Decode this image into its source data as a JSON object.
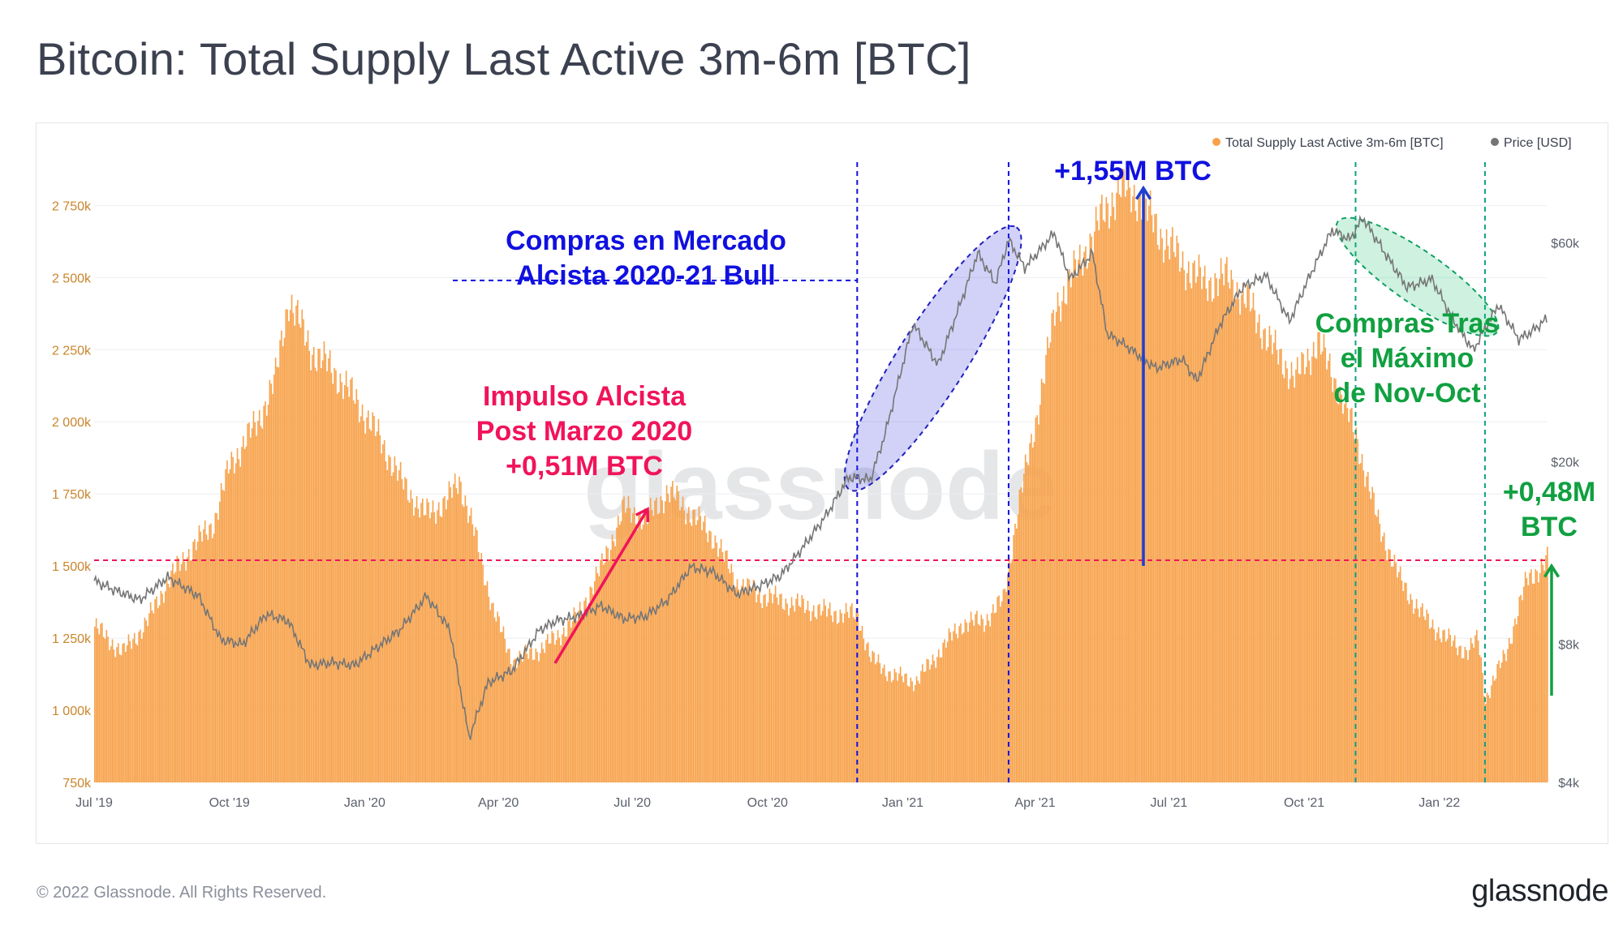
{
  "title": "Bitcoin: Total Supply Last Active 3m-6m [BTC]",
  "footer": "© 2022 Glassnode. All Rights Reserved.",
  "brand": "glassnode",
  "watermark": "glassnode",
  "colors": {
    "bars": "#f7a24b",
    "price": "#757575",
    "blue": "#1010e0",
    "pink": "#f0145a",
    "green": "#10a040",
    "grid": "#eceef2",
    "left_tick": "#c9852c",
    "tick": "#5a5f6b"
  },
  "chart_data": {
    "type": "bar",
    "x_start": "2019-07-01",
    "x_end": "2022-03-15",
    "xticks": [
      {
        "label": "Jul '19",
        "date": "2019-07-01"
      },
      {
        "label": "Oct '19",
        "date": "2019-10-01"
      },
      {
        "label": "Jan '20",
        "date": "2020-01-01"
      },
      {
        "label": "Apr '20",
        "date": "2020-04-01"
      },
      {
        "label": "Jul '20",
        "date": "2020-07-01"
      },
      {
        "label": "Oct '20",
        "date": "2020-10-01"
      },
      {
        "label": "Jan '21",
        "date": "2021-01-01"
      },
      {
        "label": "Apr '21",
        "date": "2021-04-01"
      },
      {
        "label": "Jul '21",
        "date": "2021-07-01"
      },
      {
        "label": "Oct '21",
        "date": "2021-10-01"
      },
      {
        "label": "Jan '22",
        "date": "2022-01-01"
      }
    ],
    "y_left": {
      "min": 750000,
      "max": 2900000,
      "ticks": [
        {
          "label": "750k",
          "value": 750000
        },
        {
          "label": "1 000k",
          "value": 1000000
        },
        {
          "label": "1 250k",
          "value": 1250000
        },
        {
          "label": "1 500k",
          "value": 1500000
        },
        {
          "label": "1 750k",
          "value": 1750000
        },
        {
          "label": "2 000k",
          "value": 2000000
        },
        {
          "label": "2 250k",
          "value": 2250000
        },
        {
          "label": "2 500k",
          "value": 2500000
        },
        {
          "label": "2 750k",
          "value": 2750000
        }
      ]
    },
    "y_right": {
      "scale": "log",
      "min": 4000,
      "max": 90000,
      "ticks": [
        {
          "label": "$4k",
          "value": 4000
        },
        {
          "label": "$8k",
          "value": 8000
        },
        {
          "label": "$20k",
          "value": 20000
        },
        {
          "label": "$60k",
          "value": 60000
        }
      ]
    },
    "legend": {
      "placement": "top-right",
      "items": [
        {
          "label": "Total Supply Last Active 3m-6m [BTC]",
          "color": "#f7a24b"
        },
        {
          "label": "Price [USD]",
          "color": "#757575"
        }
      ]
    },
    "series": [
      {
        "name": "Total Supply Last Active 3m-6m [BTC]",
        "axis": "left",
        "points": [
          [
            "2019-07-01",
            1290000
          ],
          [
            "2019-07-20",
            1200000
          ],
          [
            "2019-08-05",
            1300000
          ],
          [
            "2019-08-20",
            1450000
          ],
          [
            "2019-09-05",
            1560000
          ],
          [
            "2019-09-20",
            1650000
          ],
          [
            "2019-10-01",
            1850000
          ],
          [
            "2019-10-20",
            2000000
          ],
          [
            "2019-11-01",
            2150000
          ],
          [
            "2019-11-10",
            2430000
          ],
          [
            "2019-11-25",
            2250000
          ],
          [
            "2019-12-10",
            2180000
          ],
          [
            "2019-12-25",
            2080000
          ],
          [
            "2020-01-10",
            1950000
          ],
          [
            "2020-01-25",
            1800000
          ],
          [
            "2020-02-10",
            1680000
          ],
          [
            "2020-02-25",
            1720000
          ],
          [
            "2020-03-05",
            1800000
          ],
          [
            "2020-03-15",
            1620000
          ],
          [
            "2020-03-28",
            1350000
          ],
          [
            "2020-04-10",
            1170000
          ],
          [
            "2020-04-25",
            1200000
          ],
          [
            "2020-05-10",
            1250000
          ],
          [
            "2020-05-25",
            1330000
          ],
          [
            "2020-06-10",
            1500000
          ],
          [
            "2020-06-25",
            1700000
          ],
          [
            "2020-07-10",
            1660000
          ],
          [
            "2020-07-25",
            1760000
          ],
          [
            "2020-08-10",
            1680000
          ],
          [
            "2020-08-25",
            1600000
          ],
          [
            "2020-09-10",
            1440000
          ],
          [
            "2020-09-25",
            1400000
          ],
          [
            "2020-10-10",
            1380000
          ],
          [
            "2020-10-25",
            1360000
          ],
          [
            "2020-11-10",
            1340000
          ],
          [
            "2020-12-01",
            1330000
          ],
          [
            "2020-12-10",
            1180000
          ],
          [
            "2020-12-25",
            1120000
          ],
          [
            "2021-01-10",
            1100000
          ],
          [
            "2021-01-25",
            1200000
          ],
          [
            "2021-02-10",
            1300000
          ],
          [
            "2021-02-25",
            1310000
          ],
          [
            "2021-03-10",
            1380000
          ],
          [
            "2021-03-20",
            1700000
          ],
          [
            "2021-04-01",
            2000000
          ],
          [
            "2021-04-15",
            2400000
          ],
          [
            "2021-05-01",
            2550000
          ],
          [
            "2021-05-15",
            2700000
          ],
          [
            "2021-05-28",
            2810000
          ],
          [
            "2021-06-10",
            2780000
          ],
          [
            "2021-06-25",
            2650000
          ],
          [
            "2021-07-10",
            2550000
          ],
          [
            "2021-07-25",
            2480000
          ],
          [
            "2021-08-10",
            2500000
          ],
          [
            "2021-08-25",
            2400000
          ],
          [
            "2021-09-10",
            2250000
          ],
          [
            "2021-09-25",
            2150000
          ],
          [
            "2021-10-10",
            2280000
          ],
          [
            "2021-10-25",
            2100000
          ],
          [
            "2021-11-05",
            1950000
          ],
          [
            "2021-11-20",
            1650000
          ],
          [
            "2021-12-05",
            1450000
          ],
          [
            "2021-12-20",
            1330000
          ],
          [
            "2022-01-05",
            1250000
          ],
          [
            "2022-01-20",
            1200000
          ],
          [
            "2022-01-27",
            1250000
          ],
          [
            "2022-02-01",
            1040000
          ],
          [
            "2022-02-15",
            1200000
          ],
          [
            "2022-03-01",
            1450000
          ],
          [
            "2022-03-15",
            1520000
          ]
        ]
      },
      {
        "name": "Price [USD]",
        "axis": "right",
        "points": [
          [
            "2019-07-01",
            11000
          ],
          [
            "2019-07-15",
            10500
          ],
          [
            "2019-08-01",
            10000
          ],
          [
            "2019-08-20",
            11200
          ],
          [
            "2019-09-10",
            10200
          ],
          [
            "2019-09-25",
            8200
          ],
          [
            "2019-10-10",
            8000
          ],
          [
            "2019-10-26",
            9300
          ],
          [
            "2019-11-10",
            9000
          ],
          [
            "2019-11-25",
            7200
          ],
          [
            "2019-12-10",
            7300
          ],
          [
            "2019-12-25",
            7200
          ],
          [
            "2020-01-10",
            7900
          ],
          [
            "2020-01-25",
            8600
          ],
          [
            "2020-02-12",
            10200
          ],
          [
            "2020-02-28",
            8600
          ],
          [
            "2020-03-12",
            5000
          ],
          [
            "2020-03-25",
            6600
          ],
          [
            "2020-04-10",
            7000
          ],
          [
            "2020-04-29",
            8600
          ],
          [
            "2020-05-10",
            9000
          ],
          [
            "2020-05-25",
            9200
          ],
          [
            "2020-06-10",
            9700
          ],
          [
            "2020-06-25",
            9100
          ],
          [
            "2020-07-10",
            9200
          ],
          [
            "2020-07-25",
            10000
          ],
          [
            "2020-08-10",
            11800
          ],
          [
            "2020-08-25",
            11500
          ],
          [
            "2020-09-10",
            10300
          ],
          [
            "2020-09-25",
            10700
          ],
          [
            "2020-10-10",
            11300
          ],
          [
            "2020-10-25",
            13000
          ],
          [
            "2020-11-10",
            15300
          ],
          [
            "2020-11-25",
            18500
          ],
          [
            "2020-12-10",
            18300
          ],
          [
            "2020-12-20",
            23000
          ],
          [
            "2021-01-08",
            40000
          ],
          [
            "2021-01-25",
            32500
          ],
          [
            "2021-02-10",
            45000
          ],
          [
            "2021-02-21",
            57000
          ],
          [
            "2021-03-05",
            49000
          ],
          [
            "2021-03-14",
            61000
          ],
          [
            "2021-03-25",
            53000
          ],
          [
            "2021-04-14",
            63000
          ],
          [
            "2021-04-25",
            50000
          ],
          [
            "2021-05-10",
            57000
          ],
          [
            "2021-05-20",
            38000
          ],
          [
            "2021-06-01",
            36000
          ],
          [
            "2021-06-22",
            32000
          ],
          [
            "2021-07-10",
            33500
          ],
          [
            "2021-07-20",
            30000
          ],
          [
            "2021-08-05",
            40000
          ],
          [
            "2021-08-20",
            48000
          ],
          [
            "2021-09-05",
            51000
          ],
          [
            "2021-09-21",
            40500
          ],
          [
            "2021-10-05",
            51000
          ],
          [
            "2021-10-20",
            64000
          ],
          [
            "2021-11-01",
            61000
          ],
          [
            "2021-11-10",
            68000
          ],
          [
            "2021-11-25",
            57000
          ],
          [
            "2021-12-10",
            48000
          ],
          [
            "2021-12-27",
            50000
          ],
          [
            "2022-01-10",
            41000
          ],
          [
            "2022-01-24",
            35000
          ],
          [
            "2022-02-10",
            44000
          ],
          [
            "2022-02-24",
            37000
          ],
          [
            "2022-03-05",
            38500
          ],
          [
            "2022-03-15",
            41000
          ]
        ]
      }
    ],
    "reference_lines": [
      {
        "type": "horizontal",
        "value": 1520000,
        "color": "#f0145a"
      },
      {
        "type": "horizontal",
        "value": 2490000,
        "color": "#1010e0",
        "from": "2020-03-01",
        "to": "2020-12-01"
      },
      {
        "type": "vertical",
        "date": "2020-12-01",
        "color": "#1010e0"
      },
      {
        "type": "vertical",
        "date": "2021-03-14",
        "color": "#1010e0"
      },
      {
        "type": "vertical",
        "date": "2021-11-05",
        "color": "#10a080"
      },
      {
        "type": "vertical",
        "date": "2022-02-01",
        "color": "#10a080"
      }
    ],
    "annotations": [
      {
        "lines": [
          "Compras en Mercado",
          "Alcista 2020-21 Bull"
        ],
        "color": "#1010e0"
      },
      {
        "lines": [
          "+1,55M BTC"
        ],
        "color": "#1010e0"
      },
      {
        "lines": [
          "Impulso Alcista",
          "Post Marzo 2020",
          "+0,51M BTC"
        ],
        "color": "#f0145a"
      },
      {
        "lines": [
          "Compras Tras",
          "el Máximo",
          "de Nov-Oct"
        ],
        "color": "#10a040"
      },
      {
        "lines": [
          "+0,48M",
          "BTC"
        ],
        "color": "#10a040"
      }
    ]
  }
}
